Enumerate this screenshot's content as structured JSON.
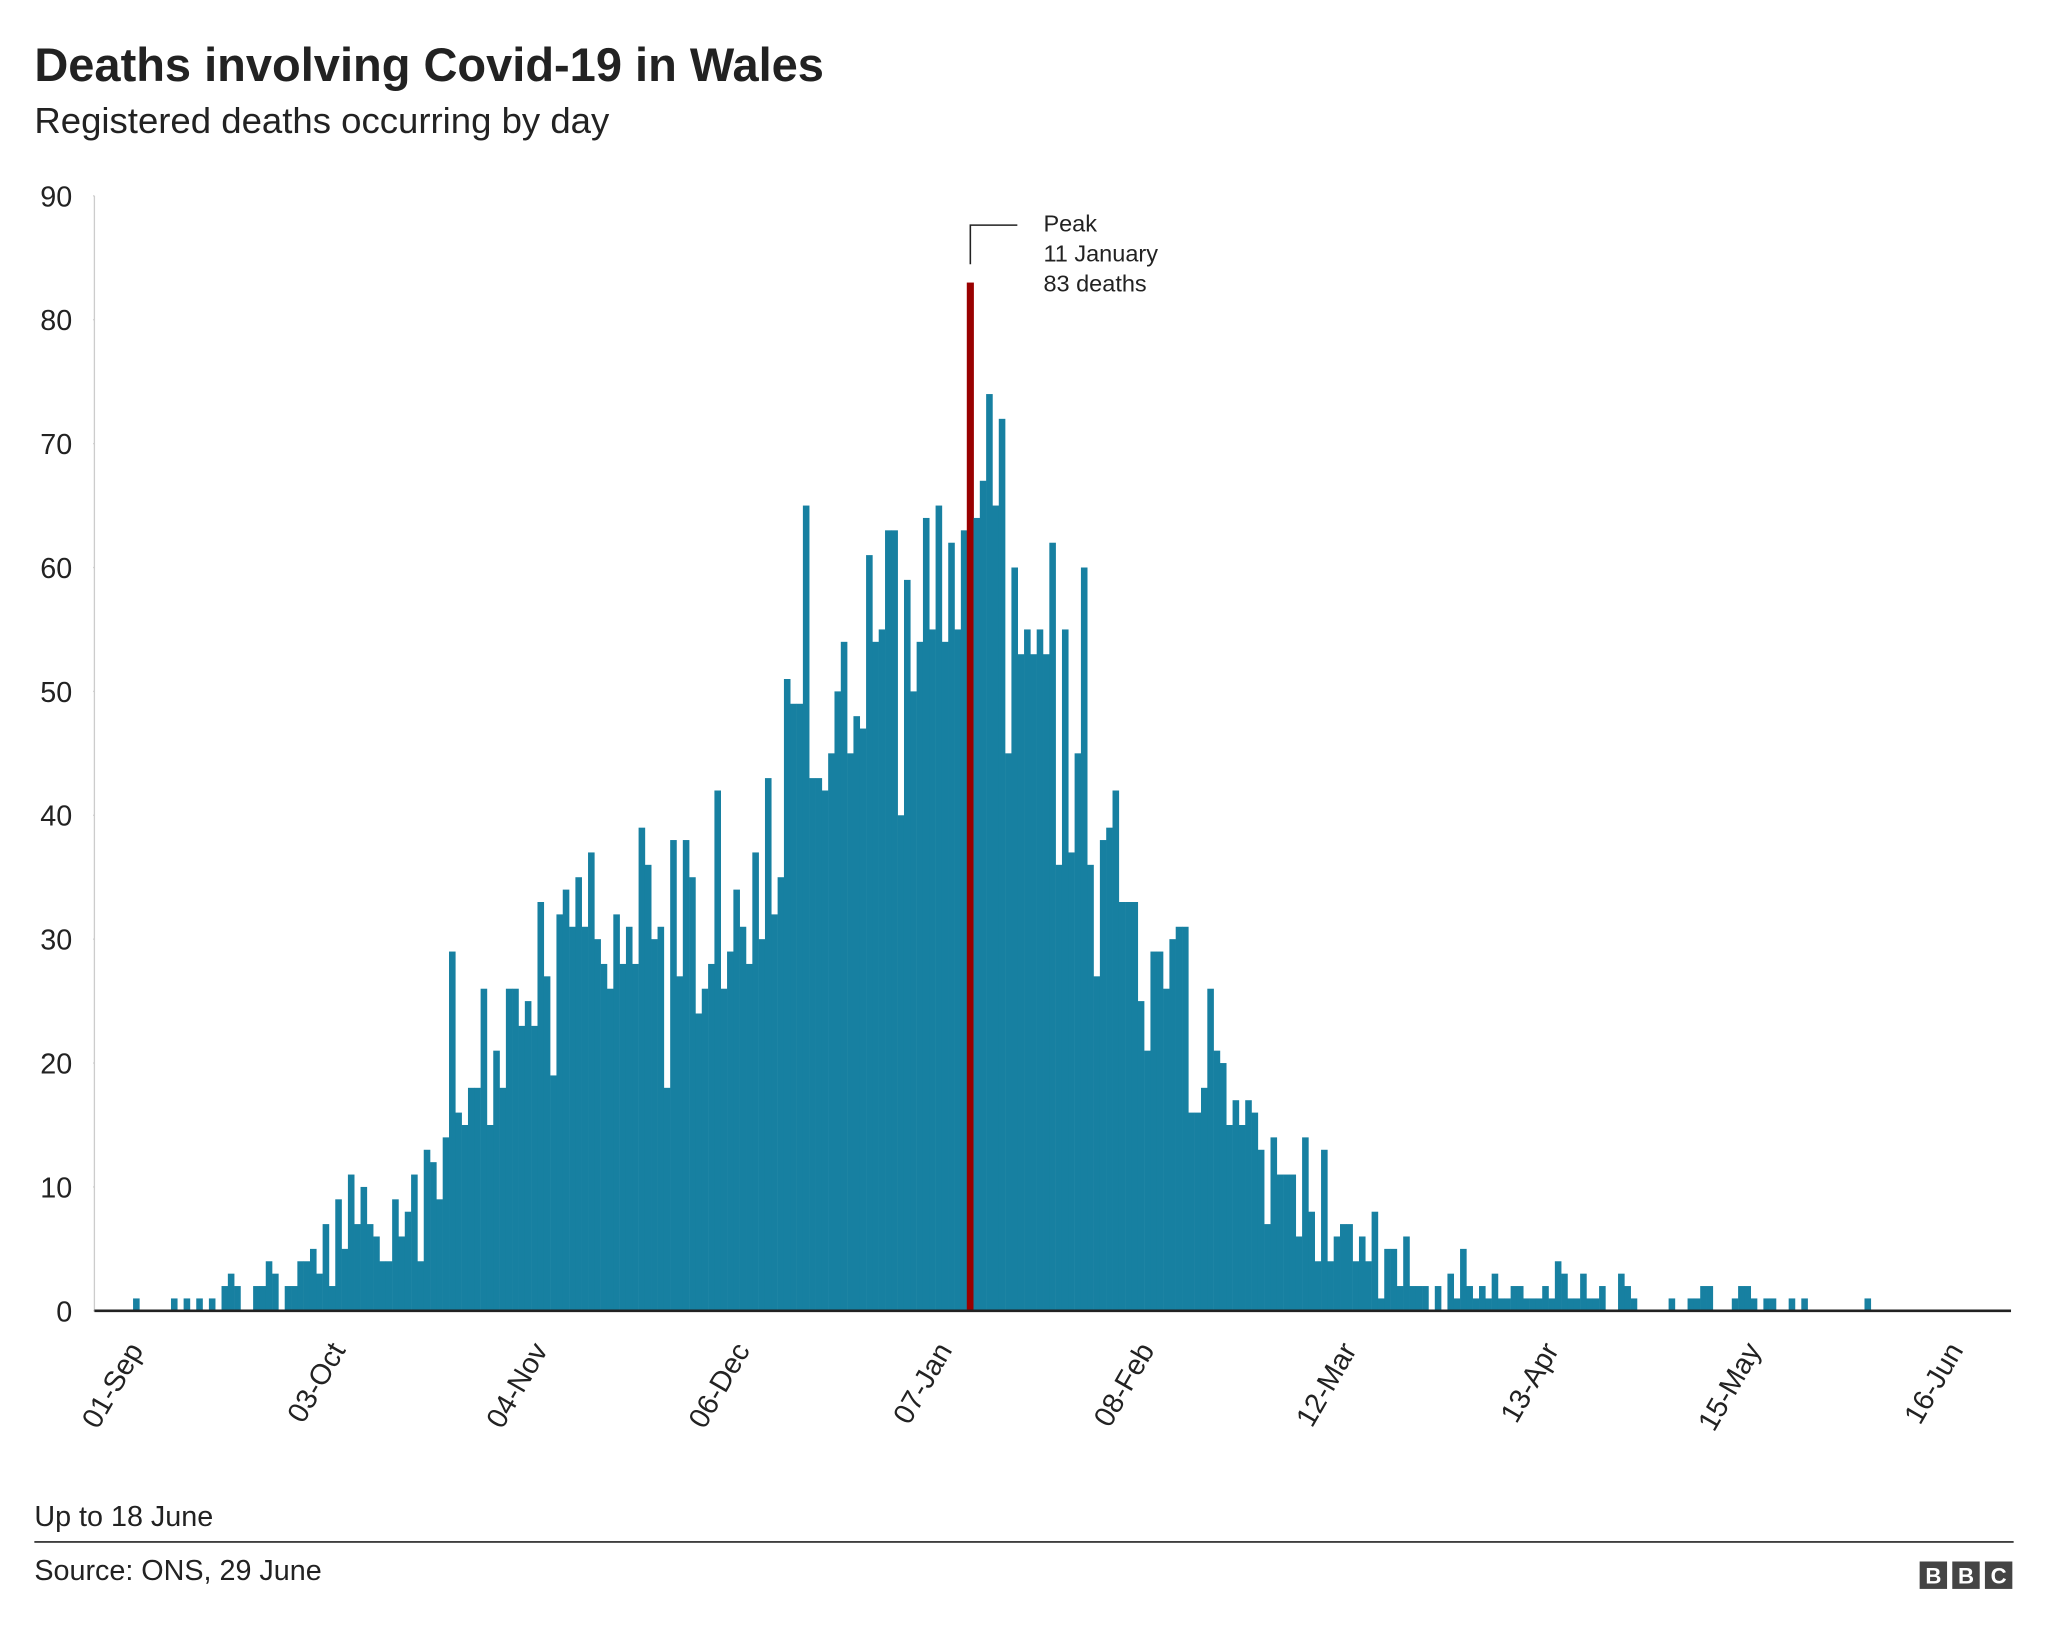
{
  "chart_data": {
    "type": "bar",
    "title": "Deaths involving Covid-19 in Wales",
    "subtitle": "Registered deaths occurring by day",
    "note": "Up to 18 June",
    "source": "Source: ONS, 29 June",
    "logo": [
      "B",
      "B",
      "C"
    ],
    "annotation": [
      "Peak",
      "11 January",
      "83 deaths"
    ],
    "color": "#1780a1",
    "highlight_color": "#990000",
    "ylim": [
      0,
      90
    ],
    "yticks": [
      0,
      10,
      20,
      30,
      40,
      50,
      60,
      70,
      80,
      90
    ],
    "grid": false,
    "categories": [
      "01-Sep",
      null,
      null,
      null,
      null,
      null,
      null,
      null,
      null,
      null,
      null,
      null,
      null,
      null,
      null,
      null,
      null,
      null,
      null,
      null,
      null,
      null,
      null,
      null,
      null,
      null,
      null,
      null,
      null,
      null,
      null,
      null,
      "03-Oct",
      null,
      null,
      null,
      null,
      null,
      null,
      null,
      null,
      null,
      null,
      null,
      null,
      null,
      null,
      null,
      null,
      null,
      null,
      null,
      null,
      null,
      null,
      null,
      null,
      null,
      null,
      null,
      null,
      null,
      null,
      null,
      "04-Nov",
      null,
      null,
      null,
      null,
      null,
      null,
      null,
      null,
      null,
      null,
      null,
      null,
      null,
      null,
      null,
      null,
      null,
      null,
      null,
      null,
      null,
      null,
      null,
      null,
      null,
      null,
      null,
      null,
      null,
      null,
      null,
      "06-Dec",
      null,
      null,
      null,
      null,
      null,
      null,
      null,
      null,
      null,
      null,
      null,
      null,
      null,
      null,
      null,
      null,
      null,
      null,
      null,
      null,
      null,
      null,
      null,
      null,
      null,
      null,
      null,
      null,
      null,
      null,
      null,
      "07-Jan",
      null,
      null,
      null,
      null,
      null,
      null,
      null,
      null,
      null,
      null,
      null,
      null,
      null,
      null,
      null,
      null,
      null,
      null,
      null,
      null,
      null,
      null,
      null,
      null,
      null,
      null,
      null,
      null,
      null,
      null,
      null,
      "08-Feb",
      null,
      null,
      null,
      null,
      null,
      null,
      null,
      null,
      null,
      null,
      null,
      null,
      null,
      null,
      null,
      null,
      null,
      null,
      null,
      null,
      null,
      null,
      null,
      null,
      null,
      null,
      null,
      null,
      null,
      null,
      null,
      "12-Mar",
      null,
      null,
      null,
      null,
      null,
      null,
      null,
      null,
      null,
      null,
      null,
      null,
      null,
      null,
      null,
      null,
      null,
      null,
      null,
      null,
      null,
      null,
      null,
      null,
      null,
      null,
      null,
      null,
      null,
      null,
      null,
      "13-Apr",
      null,
      null,
      null,
      null,
      null,
      null,
      null,
      null,
      null,
      null,
      null,
      null,
      null,
      null,
      null,
      null,
      null,
      null,
      null,
      null,
      null,
      null,
      null,
      null,
      null,
      null,
      null,
      null,
      null,
      null,
      null,
      "15-May",
      null,
      null,
      null,
      null,
      null,
      null,
      null,
      null,
      null,
      null,
      null,
      null,
      null,
      null,
      null,
      null,
      null,
      null,
      null,
      null,
      null,
      null,
      null,
      null,
      null,
      null,
      null,
      null,
      null,
      null,
      null,
      "16-Jun",
      null,
      null
    ],
    "values": [
      1,
      0,
      0,
      0,
      0,
      0,
      1,
      0,
      1,
      0,
      1,
      0,
      1,
      0,
      2,
      3,
      2,
      0,
      0,
      2,
      2,
      4,
      3,
      0,
      2,
      2,
      4,
      4,
      5,
      3,
      7,
      2,
      9,
      5,
      11,
      7,
      10,
      7,
      6,
      4,
      4,
      9,
      6,
      8,
      11,
      4,
      13,
      12,
      9,
      14,
      29,
      16,
      15,
      18,
      18,
      26,
      15,
      21,
      18,
      26,
      26,
      23,
      25,
      23,
      33,
      27,
      19,
      32,
      34,
      31,
      35,
      31,
      37,
      30,
      28,
      26,
      32,
      28,
      31,
      28,
      39,
      36,
      30,
      31,
      18,
      38,
      27,
      38,
      35,
      24,
      26,
      28,
      42,
      26,
      29,
      34,
      31,
      28,
      37,
      30,
      43,
      32,
      35,
      51,
      49,
      49,
      65,
      43,
      43,
      42,
      45,
      50,
      54,
      45,
      48,
      47,
      61,
      54,
      55,
      63,
      63,
      40,
      59,
      50,
      54,
      64,
      55,
      65,
      54,
      62,
      55,
      63,
      83,
      64,
      67,
      74,
      65,
      72,
      45,
      60,
      53,
      55,
      53,
      55,
      53,
      62,
      36,
      55,
      37,
      45,
      60,
      36,
      27,
      38,
      39,
      42,
      33,
      33,
      33,
      25,
      21,
      29,
      29,
      26,
      30,
      31,
      31,
      16,
      16,
      18,
      26,
      21,
      20,
      15,
      17,
      15,
      17,
      16,
      13,
      7,
      14,
      11,
      11,
      11,
      6,
      14,
      8,
      4,
      13,
      4,
      6,
      7,
      7,
      4,
      6,
      4,
      8,
      1,
      5,
      5,
      2,
      6,
      2,
      2,
      2,
      0,
      2,
      0,
      3,
      1,
      5,
      2,
      1,
      2,
      1,
      3,
      1,
      1,
      2,
      2,
      1,
      1,
      1,
      2,
      1,
      4,
      3,
      1,
      1,
      3,
      1,
      1,
      2,
      0,
      0,
      3,
      2,
      1,
      0,
      0,
      0,
      0,
      0,
      1,
      0,
      0,
      1,
      1,
      2,
      2,
      0,
      0,
      0,
      1,
      2,
      2,
      1,
      0,
      1,
      1,
      0,
      0,
      1,
      0,
      1,
      0,
      0,
      0,
      0,
      0,
      0,
      0,
      0,
      0,
      1,
      0,
      0,
      0,
      0,
      0,
      0,
      0,
      0,
      0,
      0,
      0,
      0,
      0,
      0,
      0,
      0
    ]
  }
}
